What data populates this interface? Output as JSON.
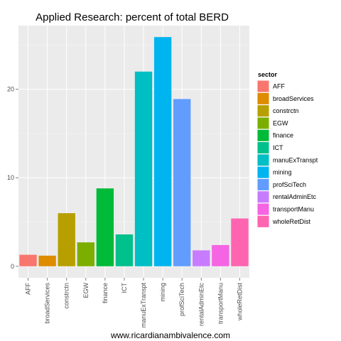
{
  "caption": "www.ricardianambivalence.com",
  "chart_data": {
    "type": "bar",
    "title": "Applied Research: percent of total BERD",
    "xlabel": "",
    "ylabel": "",
    "categories": [
      "AFF",
      "broadServices",
      "constrctn",
      "EGW",
      "finance",
      "ICT",
      "manuExTranspt",
      "mining",
      "profSciTech",
      "rentalAdminEtc",
      "transportManu",
      "wholeRetDist"
    ],
    "values": [
      1.3,
      1.2,
      6.0,
      2.7,
      8.8,
      3.6,
      22.0,
      25.9,
      18.9,
      1.8,
      2.4,
      5.4
    ],
    "colors": [
      "#F8766D",
      "#DE8C00",
      "#B79F00",
      "#7CAE00",
      "#00BA38",
      "#00C08B",
      "#00BFC4",
      "#00B4F0",
      "#619CFF",
      "#C77CFF",
      "#F564E3",
      "#FF64B0"
    ],
    "ylim": [
      -1.3,
      27.2
    ],
    "yticks": [
      0,
      10,
      20
    ],
    "ytick_labels": [
      "0",
      "10",
      "20"
    ],
    "grid": true,
    "legend": {
      "title": "sector",
      "position": "right"
    },
    "panel_background": "#EBEBEB",
    "grid_major_color": "#FFFFFF",
    "grid_minor_color": "#F5F5F5"
  }
}
